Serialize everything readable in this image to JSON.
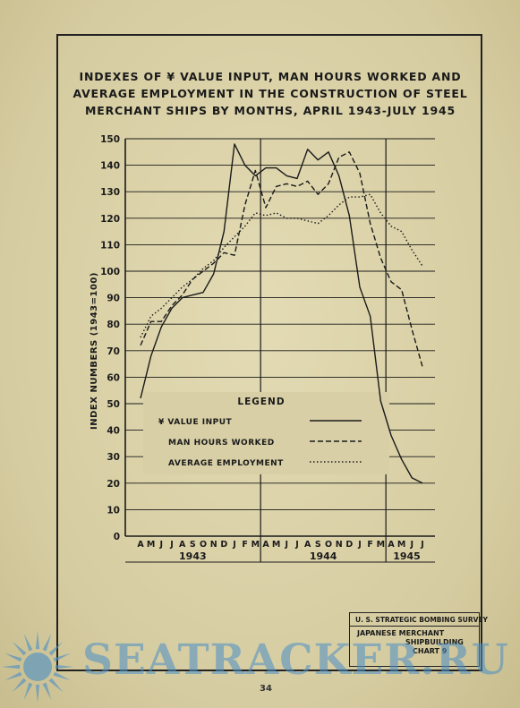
{
  "title_lines": [
    "INDEXES OF ¥ VALUE INPUT, MAN HOURS WORKED AND",
    "AVERAGE EMPLOYMENT IN THE CONSTRUCTION OF STEEL",
    "MERCHANT SHIPS BY MONTHS, APRIL 1943-JULY 1945"
  ],
  "survey": {
    "head": "U. S. STRATEGIC BOMBING SURVEY",
    "line1": "JAPANESE    MERCHANT",
    "line2": "SHIPBUILDING",
    "line3": "CHART  9"
  },
  "page_number": "34",
  "watermark": "SEATRACKER.RU",
  "legend_title": "LEGEND",
  "colors": {
    "ink": "#1a1a1a",
    "paper": "#d8cfa6",
    "watermark": "#4a8fc7"
  },
  "chart_data": {
    "type": "line",
    "ylabel": "INDEX  NUMBERS  (1943=100)",
    "xlabel": "",
    "ylim": [
      0,
      150
    ],
    "yticks": [
      0,
      10,
      20,
      30,
      40,
      50,
      60,
      70,
      80,
      90,
      100,
      110,
      120,
      130,
      140,
      150
    ],
    "x": [
      "A",
      "M",
      "J",
      "J",
      "A",
      "S",
      "O",
      "N",
      "D",
      "J",
      "F",
      "M",
      "A",
      "M",
      "J",
      "J",
      "A",
      "S",
      "O",
      "N",
      "D",
      "J",
      "F",
      "M",
      "A",
      "M",
      "J",
      "J"
    ],
    "year_labels": [
      "1943",
      "1944",
      "1945"
    ],
    "grid": true,
    "legend_placement": "center",
    "series": [
      {
        "name": "¥ VALUE INPUT",
        "style": "solid",
        "values": [
          52,
          68,
          79,
          86,
          90,
          91,
          92,
          99,
          115,
          148,
          140,
          136,
          139,
          139,
          136,
          135,
          146,
          142,
          145,
          136,
          121,
          94,
          83,
          51,
          38,
          29,
          22,
          20
        ]
      },
      {
        "name": "MAN HOURS WORKED",
        "style": "dashed",
        "values": [
          72,
          81,
          81,
          87,
          91,
          97,
          100,
          103,
          107,
          106,
          125,
          138,
          124,
          132,
          133,
          132,
          134,
          129,
          133,
          143,
          145,
          137,
          118,
          105,
          96,
          93,
          78,
          64
        ]
      },
      {
        "name": "AVERAGE EMPLOYMENT",
        "style": "dotted",
        "values": [
          75,
          83,
          86,
          90,
          94,
          97,
          101,
          104,
          109,
          113,
          117,
          122,
          121,
          122,
          120,
          120,
          119,
          118,
          121,
          125,
          128,
          128,
          129,
          122,
          117,
          115,
          108,
          102
        ]
      }
    ]
  }
}
